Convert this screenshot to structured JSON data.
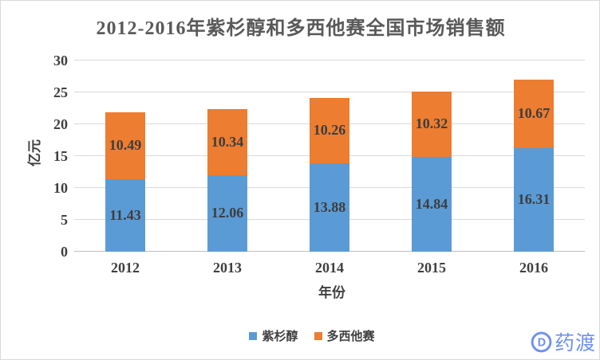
{
  "title": "2012-2016年紫杉醇和多西他赛全国市场销售额",
  "watermark": {
    "brand": "药渡",
    "logo_letter": "D"
  },
  "colors": {
    "paclitaxel_blue": "#5B9BD5",
    "docetaxel_orange": "#ED7D31",
    "gridline": "#D9D9D9",
    "axis_line": "#BFBFBF",
    "title_gray": "#595959",
    "label_gray": "#404040",
    "watermark_blue": "#6C90F2"
  },
  "chart_data": {
    "type": "bar",
    "stacked": true,
    "title": "2012-2016年紫杉醇和多西他赛全国市场销售额",
    "xlabel": "年份",
    "ylabel": "亿元",
    "categories": [
      "2012",
      "2013",
      "2014",
      "2015",
      "2016"
    ],
    "series": [
      {
        "name": "紫杉醇",
        "color": "#5B9BD5",
        "values": [
          11.43,
          12.06,
          13.88,
          14.84,
          16.31
        ]
      },
      {
        "name": "多西他赛",
        "color": "#ED7D31",
        "values": [
          10.49,
          10.34,
          10.26,
          10.32,
          10.67
        ]
      }
    ],
    "totals": [
      21.92,
      22.4,
      24.14,
      25.16,
      26.98
    ],
    "ylim": [
      0,
      30
    ],
    "ytick_step": 5,
    "yticks": [
      0,
      5,
      10,
      15,
      20,
      25,
      30
    ],
    "grid": true,
    "data_labels": true,
    "legend_position": "bottom"
  }
}
